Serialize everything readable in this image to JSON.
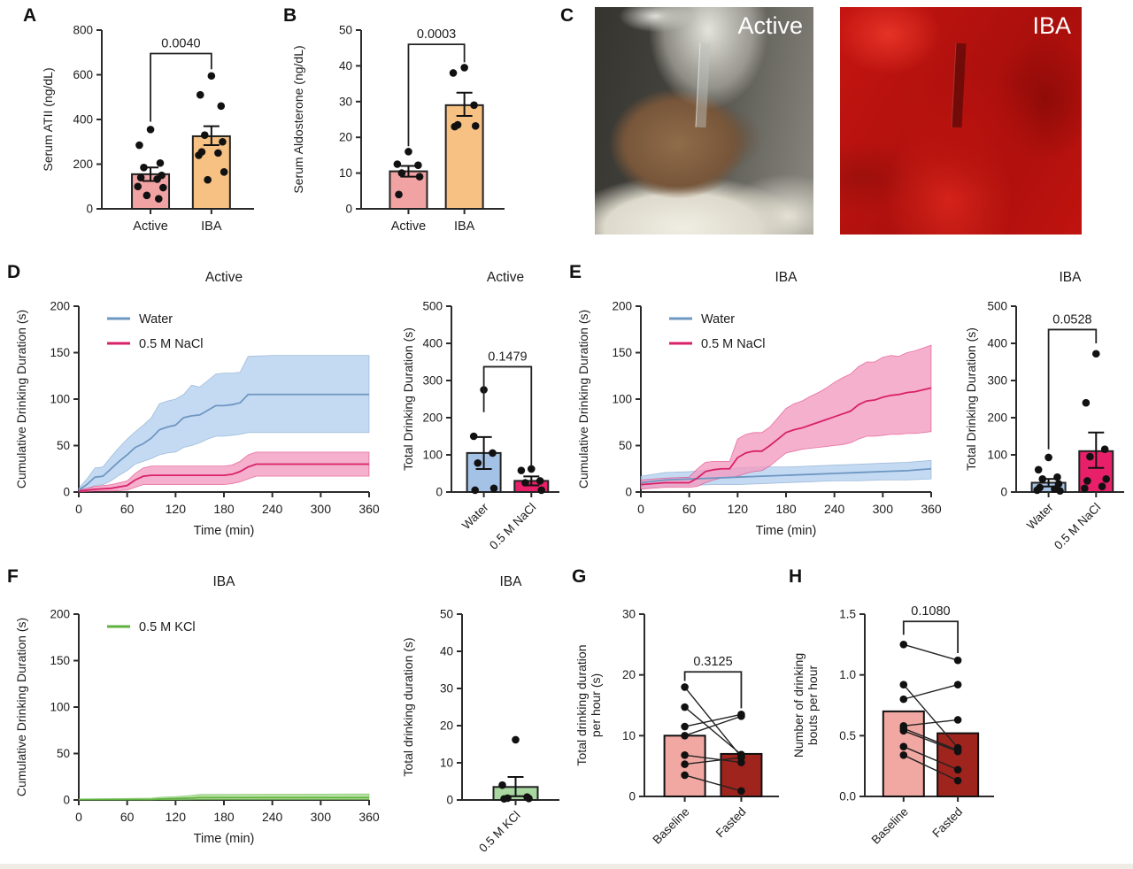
{
  "panels": {
    "A": {
      "label": "A"
    },
    "B": {
      "label": "B"
    },
    "C": {
      "label": "C",
      "photos": [
        {
          "name": "active-animal-photo",
          "caption": "Active"
        },
        {
          "name": "iba-animal-photo",
          "caption": "IBA"
        }
      ]
    },
    "D": {
      "label": "D"
    },
    "E": {
      "label": "E"
    },
    "F": {
      "label": "F"
    },
    "G": {
      "label": "G"
    },
    "H": {
      "label": "H"
    }
  },
  "colors": {
    "pink_bar": "#F1A3A4",
    "orange_bar": "#F6C183",
    "water_bar": "#A4C2E5",
    "nacl_bar": "#E82069",
    "kcl_bar": "#A8D8A0",
    "baseline_bar": "#F2A8A2",
    "fasted_bar": "#A0241E",
    "water_line": "#6E97C2",
    "water_band": "#B5D1EF",
    "nacl_line": "#D92168",
    "nacl_band": "#F29CC2",
    "kcl_line": "#5FB23F",
    "kcl_band": "#A6D98D",
    "axis": "#2b2b2b"
  },
  "chart_data": [
    {
      "id": "A",
      "type": "bar",
      "title": "",
      "ylabel": [
        "Serum ATII (ng/dL)"
      ],
      "ylim": [
        0,
        800
      ],
      "yticks": [
        0,
        200,
        400,
        600,
        800
      ],
      "ytick_labels": [
        "0",
        "200",
        "400",
        "600",
        "800"
      ],
      "categories": [
        "Active",
        "IBA"
      ],
      "rotate_labels": false,
      "values": [
        155,
        325
      ],
      "errors": [
        [
          125,
          185
        ],
        [
          285,
          370
        ]
      ],
      "points": [
        [
          355,
          285,
          205,
          185,
          150,
          140,
          133,
          100,
          95,
          60,
          45
        ],
        [
          595,
          510,
          460,
          330,
          300,
          255,
          250,
          240,
          165,
          130
        ]
      ],
      "bar_colors": [
        "#F1A3A4",
        "#F6C183"
      ],
      "p_value": "0.0040",
      "bracket": [
        390,
        695,
        625
      ]
    },
    {
      "id": "B",
      "type": "bar",
      "title": "",
      "ylabel": [
        "Serum Aldosterone (ng/dL)"
      ],
      "ylim": [
        0,
        50
      ],
      "yticks": [
        0,
        10,
        20,
        30,
        40,
        50
      ],
      "ytick_labels": [
        "0",
        "10",
        "20",
        "30",
        "40",
        "50"
      ],
      "categories": [
        "Active",
        "IBA"
      ],
      "rotate_labels": false,
      "values": [
        10.5,
        29
      ],
      "errors": [
        [
          9,
          12
        ],
        [
          26,
          32.5
        ]
      ],
      "points": [
        [
          16,
          12.5,
          12.2,
          10,
          9,
          4
        ],
        [
          39.5,
          38,
          29,
          23.5,
          23.2,
          23
        ]
      ],
      "bar_colors": [
        "#F1A3A4",
        "#F6C183"
      ],
      "p_value": "0.0003",
      "bracket": [
        17.5,
        46,
        41
      ]
    },
    {
      "id": "D_line",
      "type": "line",
      "title": "Active",
      "ylabel": [
        "Cumulative Drinking Duration (s)"
      ],
      "xlabel": "Time (min)",
      "xlim": [
        0,
        360
      ],
      "xticks": [
        0,
        60,
        120,
        180,
        240,
        300,
        360
      ],
      "ylim": [
        0,
        200
      ],
      "yticks": [
        0,
        50,
        100,
        150,
        200
      ],
      "ytick_labels": [
        "0",
        "50",
        "100",
        "150",
        "200"
      ],
      "series": [
        {
          "name": "Water",
          "line": "#6E97C2",
          "band": "#B5D1EF",
          "x": [
            0,
            10,
            20,
            30,
            40,
            50,
            60,
            70,
            80,
            90,
            100,
            110,
            120,
            130,
            140,
            150,
            160,
            170,
            180,
            190,
            200,
            210,
            240,
            360
          ],
          "mean": [
            2,
            8,
            16,
            17,
            25,
            33,
            40,
            48,
            52,
            58,
            67,
            70,
            72,
            80,
            82,
            83,
            88,
            93,
            93,
            94,
            96,
            105,
            105,
            105
          ],
          "upper": [
            4,
            14,
            26,
            27,
            38,
            48,
            57,
            65,
            72,
            80,
            95,
            98,
            100,
            105,
            115,
            113,
            120,
            127,
            128,
            128,
            129,
            146,
            147,
            147
          ],
          "lower": [
            0,
            3,
            7,
            8,
            12,
            18,
            23,
            30,
            33,
            36,
            40,
            42,
            43,
            48,
            50,
            53,
            57,
            60,
            60,
            61,
            62,
            64,
            64,
            64
          ]
        },
        {
          "name": "0.5 M NaCl",
          "line": "#D92168",
          "band": "#F29CC2",
          "x": [
            0,
            20,
            40,
            60,
            70,
            80,
            90,
            120,
            180,
            190,
            200,
            210,
            220,
            360
          ],
          "mean": [
            1,
            3,
            4,
            7,
            13,
            17,
            18,
            18,
            18,
            19,
            22,
            27,
            30,
            30
          ],
          "upper": [
            2,
            6,
            8,
            12,
            20,
            26,
            28,
            28,
            28,
            29,
            33,
            40,
            43,
            43
          ],
          "lower": [
            0,
            1,
            1,
            2,
            5,
            8,
            8,
            8,
            8,
            9,
            11,
            14,
            17,
            17
          ]
        }
      ]
    },
    {
      "id": "D_bar",
      "type": "bar",
      "title": "Active",
      "ylabel": [
        "Total Drinking Duration (s)"
      ],
      "ylim": [
        0,
        500
      ],
      "yticks": [
        0,
        100,
        200,
        300,
        400,
        500
      ],
      "ytick_labels": [
        "0",
        "100",
        "200",
        "300",
        "400",
        "500"
      ],
      "categories": [
        "Water",
        "0.5 M NaCl"
      ],
      "rotate_labels": true,
      "values": [
        105,
        30
      ],
      "errors": [
        [
          62,
          148
        ],
        [
          18,
          42
        ]
      ],
      "points": [
        [
          275,
          150,
          105,
          78,
          10,
          5
        ],
        [
          62,
          58,
          30,
          25,
          5
        ]
      ],
      "bar_colors": [
        "#A4C2E5",
        "#E82069"
      ],
      "p_value": "0.1479",
      "bracket": [
        215,
        337,
        70
      ]
    },
    {
      "id": "E_line",
      "type": "line",
      "title": "IBA",
      "ylabel": [
        "Cumulative Drinking Duration (s)"
      ],
      "xlabel": "Time (min)",
      "xlim": [
        0,
        360
      ],
      "xticks": [
        0,
        60,
        120,
        180,
        240,
        300,
        360
      ],
      "ylim": [
        0,
        200
      ],
      "yticks": [
        0,
        50,
        100,
        150,
        200
      ],
      "ytick_labels": [
        "0",
        "50",
        "100",
        "150",
        "200"
      ],
      "series": [
        {
          "name": "Water",
          "line": "#6E97C2",
          "band": "#B5D1EF",
          "x": [
            0,
            30,
            60,
            90,
            120,
            150,
            180,
            210,
            240,
            270,
            300,
            330,
            360
          ],
          "mean": [
            10,
            13,
            14,
            15,
            16,
            17,
            18,
            19,
            20,
            21,
            22,
            23,
            25
          ],
          "upper": [
            17,
            21,
            22,
            24,
            26,
            27,
            27,
            28,
            29,
            30,
            31,
            32,
            34
          ],
          "lower": [
            4,
            6,
            7,
            8,
            8,
            9,
            10,
            11,
            12,
            12,
            13,
            13,
            14
          ]
        },
        {
          "name": "0.5 M NaCl",
          "line": "#D92168",
          "band": "#F29CC2",
          "x": [
            0,
            30,
            60,
            70,
            80,
            90,
            100,
            110,
            120,
            130,
            140,
            150,
            160,
            170,
            180,
            190,
            200,
            210,
            220,
            230,
            240,
            250,
            260,
            270,
            280,
            290,
            300,
            310,
            320,
            330,
            340,
            350,
            360
          ],
          "mean": [
            8,
            10,
            10,
            15,
            22,
            24,
            25,
            25,
            37,
            42,
            44,
            44,
            50,
            57,
            64,
            67,
            69,
            72,
            75,
            78,
            81,
            84,
            87,
            94,
            98,
            99,
            102,
            104,
            105,
            107,
            108,
            110,
            112
          ],
          "upper": [
            13,
            15,
            16,
            25,
            32,
            33,
            33,
            33,
            57,
            62,
            64,
            64,
            70,
            80,
            90,
            95,
            98,
            103,
            107,
            112,
            118,
            123,
            127,
            135,
            140,
            140,
            145,
            147,
            146,
            150,
            152,
            155,
            158
          ],
          "lower": [
            3,
            5,
            5,
            6,
            10,
            13,
            15,
            15,
            17,
            20,
            22,
            23,
            28,
            35,
            42,
            44,
            46,
            47,
            48,
            49,
            50,
            51,
            53,
            57,
            60,
            60,
            61,
            62,
            62,
            63,
            63,
            64,
            65
          ]
        }
      ]
    },
    {
      "id": "E_bar",
      "type": "bar",
      "title": "IBA",
      "ylabel": [
        "Total Drinking Duration (s)"
      ],
      "ylim": [
        0,
        500
      ],
      "yticks": [
        0,
        100,
        200,
        300,
        400,
        500
      ],
      "ytick_labels": [
        "0",
        "100",
        "200",
        "300",
        "400",
        "500"
      ],
      "categories": [
        "Water",
        "0.5 M NaCl"
      ],
      "rotate_labels": true,
      "values": [
        25,
        110
      ],
      "errors": [
        [
          15,
          35
        ],
        [
          65,
          160
        ]
      ],
      "points": [
        [
          93,
          60,
          40,
          35,
          22,
          12,
          8,
          5,
          3
        ],
        [
          372,
          240,
          115,
          95,
          35,
          30,
          15,
          10
        ]
      ],
      "bar_colors": [
        "#A4C2E5",
        "#E82069"
      ],
      "p_value": "0.0528",
      "bracket": [
        115,
        437,
        400
      ]
    },
    {
      "id": "F_line",
      "type": "line",
      "title": "IBA",
      "ylabel": [
        "Cumulative Drinking Duration (s)"
      ],
      "xlabel": "Time (min)",
      "xlim": [
        0,
        360
      ],
      "xticks": [
        0,
        60,
        120,
        180,
        240,
        300,
        360
      ],
      "ylim": [
        0,
        200
      ],
      "yticks": [
        0,
        50,
        100,
        150,
        200
      ],
      "ytick_labels": [
        "0",
        "50",
        "100",
        "150",
        "200"
      ],
      "series": [
        {
          "name": "0.5 M KCl",
          "line": "#5FB23F",
          "band": "#A6D98D",
          "x": [
            0,
            90,
            100,
            120,
            140,
            150,
            360
          ],
          "mean": [
            0.5,
            0.5,
            1,
            1.5,
            2,
            2.5,
            2.5
          ],
          "upper": [
            1,
            2,
            3,
            3.5,
            5,
            6,
            6.5
          ],
          "lower": [
            0,
            0,
            0,
            0,
            0.2,
            0.3,
            0.3
          ]
        }
      ]
    },
    {
      "id": "F_bar",
      "type": "bar",
      "title": "IBA",
      "ylabel": [
        "Total drinking duration (s)"
      ],
      "ylim": [
        0,
        50
      ],
      "yticks": [
        0,
        10,
        20,
        30,
        40,
        50
      ],
      "ytick_labels": [
        "0",
        "10",
        "20",
        "30",
        "40",
        "50"
      ],
      "categories": [
        "0.5 M KCl"
      ],
      "rotate_labels": true,
      "values": [
        3.5
      ],
      "errors": [
        [
          1,
          6.2
        ]
      ],
      "points": [
        [
          16.2,
          4,
          0.8,
          0.5,
          0.4,
          0.3
        ]
      ],
      "bar_colors": [
        "#A8D8A0"
      ],
      "p_value": "",
      "bracket": null
    },
    {
      "id": "G",
      "type": "paired",
      "title": "",
      "ylabel": [
        "Total drinking duration",
        "per hour (s)"
      ],
      "ylim": [
        0,
        30
      ],
      "yticks": [
        0,
        10,
        20,
        30
      ],
      "ytick_labels": [
        "0",
        "10",
        "20",
        "30"
      ],
      "categories": [
        "Baseline",
        "Fasted"
      ],
      "rotate_labels": true,
      "values": [
        10,
        7
      ],
      "bar_colors": [
        "#F2A8A2",
        "#A0241E"
      ],
      "p_value": "0.3125",
      "bracket": [
        19,
        20.5,
        14.5
      ],
      "pairs": [
        [
          18,
          6.5
        ],
        [
          14.7,
          6.9
        ],
        [
          11.5,
          13.5
        ],
        [
          10,
          13.2
        ],
        [
          6.8,
          5.6
        ],
        [
          5.3,
          6.4
        ],
        [
          3.5,
          0.9
        ]
      ]
    },
    {
      "id": "H",
      "type": "paired",
      "title": "",
      "ylabel": [
        "Number of drinking",
        "bouts per hour"
      ],
      "ylim": [
        0,
        1.5
      ],
      "yticks": [
        0,
        0.5,
        1.0,
        1.5
      ],
      "ytick_labels": [
        "0.0",
        "0.5",
        "1.0",
        "1.5"
      ],
      "categories": [
        "Baseline",
        "Fasted"
      ],
      "rotate_labels": true,
      "values": [
        0.7,
        0.52
      ],
      "bar_colors": [
        "#F2A8A2",
        "#A0241E"
      ],
      "p_value": "0.1080",
      "bracket": [
        1.33,
        1.44,
        1.18
      ],
      "pairs": [
        [
          1.25,
          1.12
        ],
        [
          0.92,
          0.4
        ],
        [
          0.8,
          0.92
        ],
        [
          0.58,
          0.63
        ],
        [
          0.56,
          0.38
        ],
        [
          0.54,
          0.37
        ],
        [
          0.41,
          0.22
        ],
        [
          0.34,
          0.13
        ]
      ]
    }
  ]
}
